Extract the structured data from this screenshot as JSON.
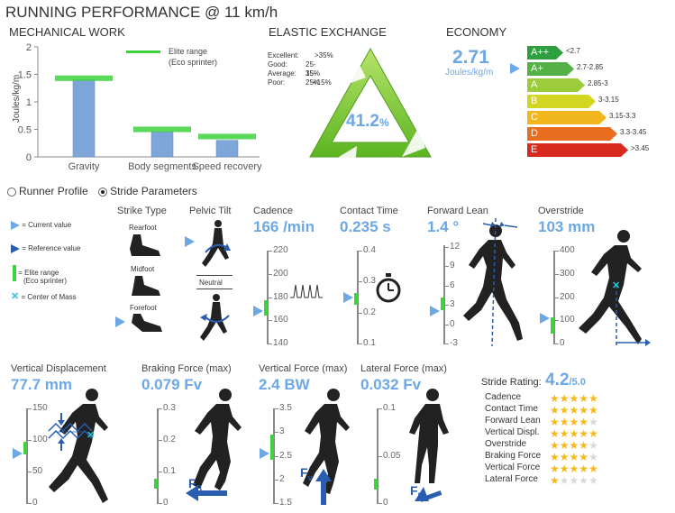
{
  "title": "RUNNING PERFORMANCE @ 11 km/h",
  "mechanical_work": {
    "heading": "MECHANICAL WORK",
    "legend_line1": "Elite range",
    "legend_line2": "(Eco sprinter)",
    "ylabel": "Joules/kg/m",
    "yticks": [
      "2",
      "1.5",
      "1",
      "0.5",
      "0"
    ]
  },
  "chart_data": {
    "type": "bar",
    "categories": [
      "Gravity",
      "Body segments",
      "Speed recovery"
    ],
    "values": [
      1.4,
      0.45,
      0.3
    ],
    "elite_range": [
      [
        1.38,
        1.48
      ],
      [
        0.45,
        0.55
      ],
      [
        0.32,
        0.42
      ]
    ],
    "ylabel": "Joules/kg/m",
    "ylim": [
      0,
      2
    ],
    "legend": [
      "Elite range (Eco sprinter)"
    ]
  },
  "elastic": {
    "heading": "ELASTIC EXCHANGE",
    "value": "41.2",
    "unit": "%",
    "scale": [
      {
        "label": "Excellent:",
        "range": ">35%"
      },
      {
        "label": "Good:",
        "range": "25-35%"
      },
      {
        "label": "Average:",
        "range": "15-25%"
      },
      {
        "label": "Poor:",
        "range": "<15%"
      }
    ]
  },
  "economy": {
    "heading": "ECONOMY",
    "value": "2.71",
    "unit": "Joules/kg/m",
    "grades": [
      {
        "grade": "A++",
        "range": "<2.7",
        "color": "#2e9e3f"
      },
      {
        "grade": "A+",
        "range": "2.7-2.85",
        "color": "#55b046"
      },
      {
        "grade": "A",
        "range": "2.85-3",
        "color": "#9ccb3b"
      },
      {
        "grade": "B",
        "range": "3-3.15",
        "color": "#d2d620"
      },
      {
        "grade": "C",
        "range": "3.15-3.3",
        "color": "#f2b71d"
      },
      {
        "grade": "D",
        "range": "3.3-3.45",
        "color": "#e86d1f"
      },
      {
        "grade": "E",
        "range": ">3.45",
        "color": "#d82a1f"
      }
    ]
  },
  "tabs": {
    "runner_profile": "Runner Profile",
    "stride_parameters": "Stride Parameters"
  },
  "legend": {
    "current": "= Current value",
    "reference": "= Reference value",
    "elite1": "= Elite range",
    "elite2": "(Eco sprinter)",
    "com": "= Center of Mass"
  },
  "strike_type": {
    "heading": "Strike Type",
    "rearfoot": "Rearfoot",
    "midfoot": "Midfoot",
    "forefoot": "Forefoot"
  },
  "pelvic_tilt": {
    "heading": "Pelvic Tilt",
    "neutral": "Neutral"
  },
  "cadence": {
    "heading": "Cadence",
    "value": "166 /min",
    "ticks": [
      "220",
      "200",
      "180",
      "160",
      "140"
    ]
  },
  "contact_time": {
    "heading": "Contact Time",
    "value": "0.235 s",
    "ticks": [
      "0.4",
      "0.3",
      "0.2",
      "0.1"
    ]
  },
  "forward_lean": {
    "heading": "Forward Lean",
    "value": "1.4 °",
    "ticks": [
      "12",
      "9",
      "6",
      "3",
      "0",
      "-3"
    ]
  },
  "overstride": {
    "heading": "Overstride",
    "value": "103 mm",
    "ticks": [
      "400",
      "300",
      "200",
      "100",
      "0"
    ]
  },
  "vertical_displacement": {
    "heading": "Vertical Displacement",
    "value": "77.7 mm",
    "ticks": [
      "150",
      "100",
      "50",
      "0"
    ]
  },
  "braking_force": {
    "heading": "Braking Force (max)",
    "value": "0.079 Fv",
    "ticks": [
      "0.3",
      "0.2",
      "0.1",
      "0"
    ],
    "vector_label": "F",
    "vector_sub": "B"
  },
  "vertical_force": {
    "heading": "Vertical Force (max)",
    "value": "2.4 BW",
    "ticks": [
      "3.5",
      "3",
      "2.5",
      "2",
      "1.5"
    ],
    "vector_label": "F",
    "vector_sub": "v"
  },
  "lateral_force": {
    "heading": "Lateral Force (max)",
    "value": "0.032 Fv",
    "ticks": [
      "0.1",
      "0.05",
      "0"
    ],
    "vector_label": "F",
    "vector_sub": "L"
  },
  "stride_rating": {
    "heading": "Stride Rating:",
    "value": "4.2",
    "max": "/5.0",
    "items": [
      {
        "label": "Cadence",
        "stars": 5
      },
      {
        "label": "Contact Time",
        "stars": 5
      },
      {
        "label": "Forward Lean",
        "stars": 4
      },
      {
        "label": "Vertical Displ.",
        "stars": 5
      },
      {
        "label": "Overstride",
        "stars": 4
      },
      {
        "label": "Braking Force",
        "stars": 4
      },
      {
        "label": "Vertical Force",
        "stars": 5
      },
      {
        "label": "Lateral Force",
        "stars": 1
      }
    ]
  }
}
